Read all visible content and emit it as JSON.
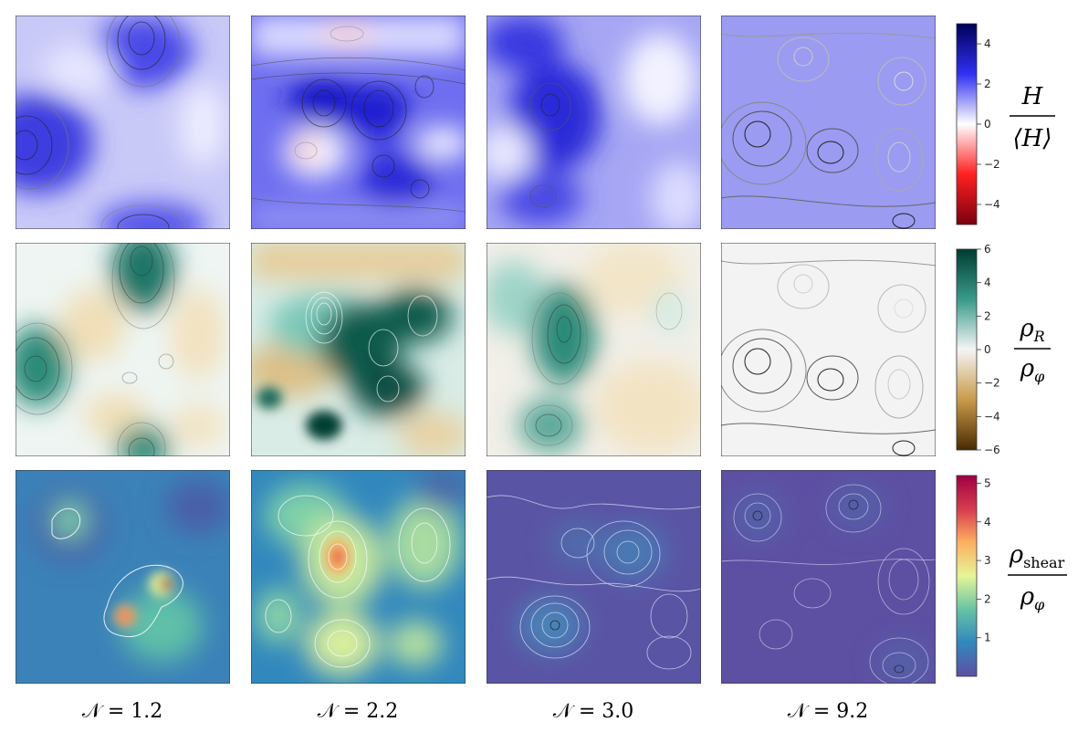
{
  "chart_data": {
    "type": "heatmap",
    "grid": "4 columns x 3 rows of field maps with contour lines",
    "columns": [
      {
        "label": "𝒩 = 1.2",
        "N": 1.2
      },
      {
        "label": "𝒩 = 2.2",
        "N": 2.2
      },
      {
        "label": "𝒩 = 3.0",
        "N": 3.0
      },
      {
        "label": "𝒩 = 9.2",
        "N": 9.2
      }
    ],
    "rows": [
      {
        "quantity": "H / ⟨H⟩",
        "label_num": "H",
        "label_den": "⟨H⟩",
        "colormap": "seismic (red-white-blue)",
        "colors": {
          "min": "#7a0010",
          "neg": "#ff2020",
          "zero": "#ffffff",
          "pos": "#3030f0",
          "max": "#00005a"
        },
        "range": [
          -5,
          5
        ],
        "ticks": [
          "4",
          "2",
          "0",
          "−2",
          "−4"
        ],
        "tick_values": [
          4,
          2,
          0,
          -2,
          -4
        ]
      },
      {
        "quantity": "ρ_R / ρ_φ",
        "label_num": "ρ",
        "label_num_sub": "R",
        "label_den": "ρ",
        "label_den_sub": "φ",
        "colormap": "BrBG (brown-white-teal)",
        "colors": {
          "min": "#4a2a04",
          "neg": "#c99a4a",
          "zero": "#f5f5f5",
          "pos": "#3a9a8a",
          "max": "#003c30"
        },
        "range": [
          -6,
          6
        ],
        "ticks": [
          "6",
          "4",
          "2",
          "0",
          "−2",
          "−4",
          "−6"
        ],
        "tick_values": [
          6,
          4,
          2,
          0,
          -2,
          -4,
          -6
        ]
      },
      {
        "quantity": "ρ_shear / ρ_φ",
        "label_num": "ρ",
        "label_num_sub": "shear",
        "label_den": "ρ",
        "label_den_sub": "φ",
        "colormap": "Spectral_r",
        "colors": {
          "c0": "#5e4fa2",
          "c1": "#3288bd",
          "c2": "#66c2a5",
          "c3": "#e6f598",
          "c4": "#fdae61",
          "c5": "#d53e4f",
          "c6": "#9e0142"
        },
        "range": [
          0,
          5.2
        ],
        "ticks": [
          "5",
          "4",
          "3",
          "2",
          "1"
        ],
        "tick_values": [
          5,
          4,
          3,
          2,
          1
        ]
      }
    ]
  }
}
